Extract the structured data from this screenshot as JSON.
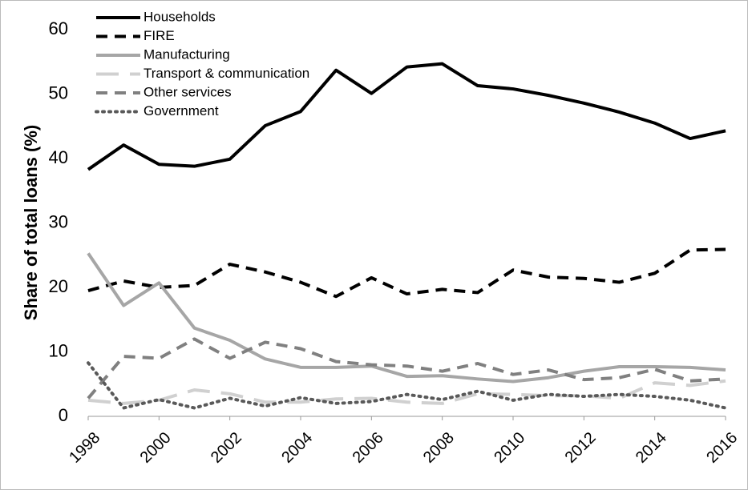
{
  "chart_data": {
    "type": "line",
    "y_label": "Share of total loans (%)",
    "x": [
      1998,
      1999,
      2000,
      2001,
      2002,
      2003,
      2004,
      2005,
      2006,
      2007,
      2008,
      2009,
      2010,
      2011,
      2012,
      2013,
      2014,
      2015,
      2016
    ],
    "xlim": [
      1998,
      2016
    ],
    "xticks": [
      1998,
      2000,
      2002,
      2004,
      2006,
      2008,
      2010,
      2012,
      2014,
      2016
    ],
    "ylim": [
      0,
      60
    ],
    "yticks": [
      0,
      10,
      20,
      30,
      40,
      50,
      60
    ],
    "grid": false,
    "legend": "top-left",
    "series": [
      {
        "name": "Households",
        "color": "#000000",
        "dash": "solid",
        "values": [
          38.3,
          42.1,
          39.1,
          38.8,
          39.9,
          45.1,
          47.3,
          53.7,
          50.1,
          54.2,
          54.7,
          51.3,
          50.8,
          49.8,
          48.6,
          47.2,
          45.5,
          43.1,
          44.3
        ]
      },
      {
        "name": "FIRE",
        "color": "#000000",
        "dash": "dashed",
        "values": [
          19.5,
          21,
          20,
          20.3,
          23.6,
          22.4,
          20.8,
          18.6,
          21.5,
          19,
          19.7,
          19.2,
          22.7,
          21.6,
          21.4,
          20.8,
          22.2,
          25.8,
          25.9
        ]
      },
      {
        "name": "Manufacturing",
        "color": "#a6a6a6",
        "dash": "solid",
        "values": [
          25.3,
          17.2,
          20.7,
          13.7,
          11.8,
          8.9,
          7.6,
          7.6,
          7.8,
          6.2,
          6.3,
          5.8,
          5.4,
          6,
          7,
          7.7,
          7.7,
          7.6,
          7.2
        ]
      },
      {
        "name": "Transport & communication",
        "color": "#d0d0d0",
        "dash": "longdash",
        "values": [
          2.5,
          2,
          2.5,
          4.1,
          3.5,
          2.2,
          2.2,
          2.7,
          2.8,
          2.2,
          2,
          3.5,
          3.4,
          3.2,
          3.2,
          2.8,
          5.2,
          4.8,
          5.5
        ]
      },
      {
        "name": "Other services",
        "color": "#808080",
        "dash": "dashed",
        "values": [
          2.8,
          9.3,
          9,
          12,
          9,
          11.5,
          10.5,
          8.5,
          8,
          7.8,
          7,
          8.2,
          6.5,
          7.2,
          5.7,
          6,
          7.3,
          5.5,
          5.8
        ]
      },
      {
        "name": "Government",
        "color": "#595959",
        "dash": "dotted",
        "values": [
          8.3,
          1.3,
          2.6,
          1.3,
          2.8,
          1.6,
          2.9,
          2,
          2.3,
          3.4,
          2.6,
          3.9,
          2.5,
          3.4,
          3.1,
          3.4,
          3.1,
          2.5,
          1.3
        ]
      }
    ]
  }
}
